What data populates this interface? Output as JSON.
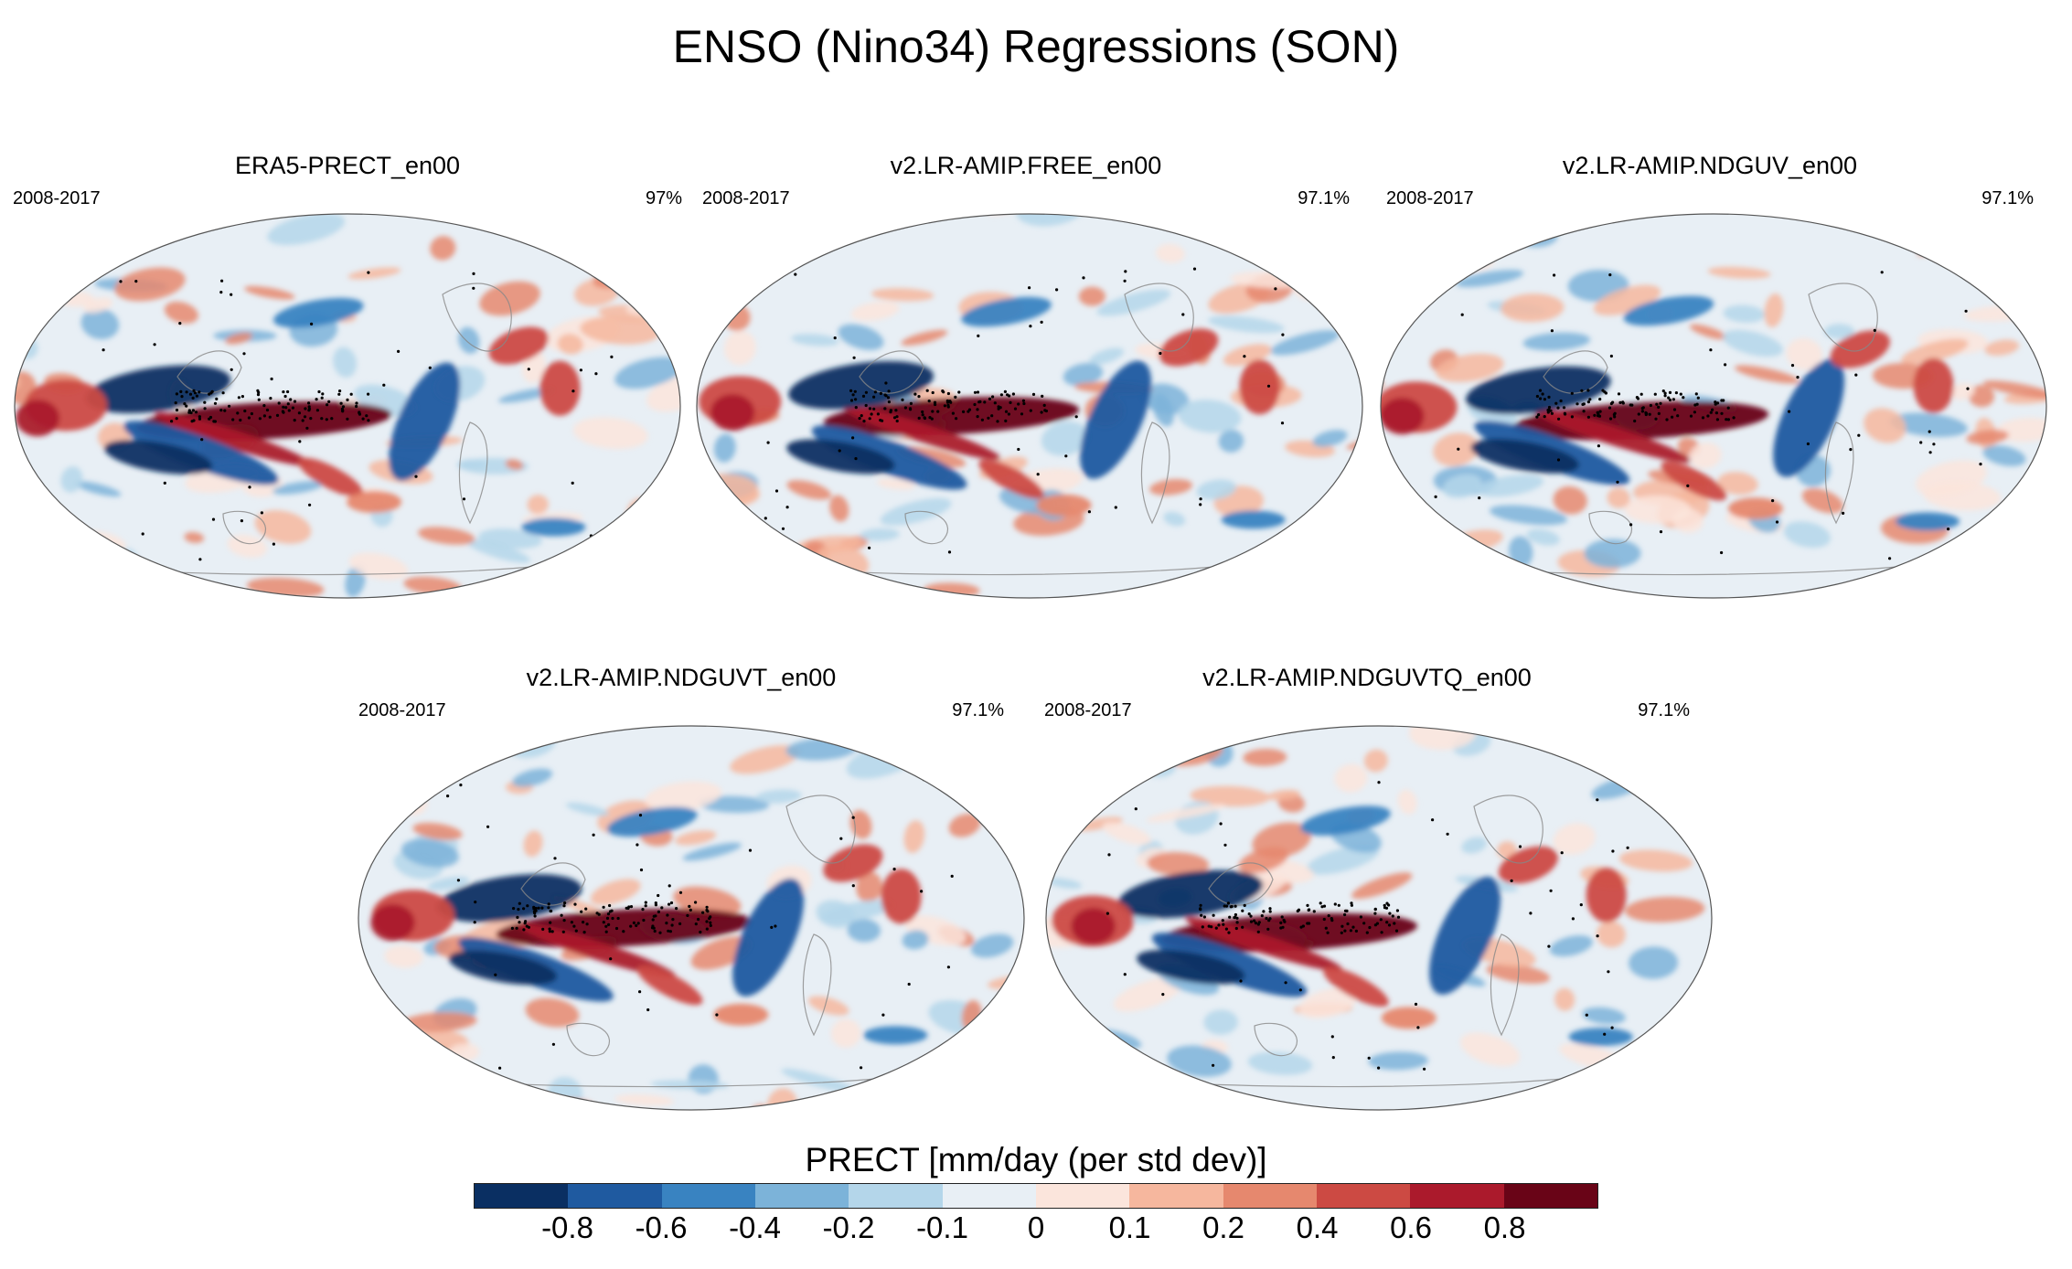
{
  "title": "ENSO (Nino34) Regressions (SON)",
  "panels": [
    {
      "title": "ERA5-PRECT_en00",
      "years": "2008-2017",
      "pct": "97%"
    },
    {
      "title": "v2.LR-AMIP.FREE_en00",
      "years": "2008-2017",
      "pct": "97.1%"
    },
    {
      "title": "v2.LR-AMIP.NDGUV_en00",
      "years": "2008-2017",
      "pct": "97.1%"
    },
    {
      "title": "v2.LR-AMIP.NDGUVT_en00",
      "years": "2008-2017",
      "pct": "97.1%"
    },
    {
      "title": "v2.LR-AMIP.NDGUVTQ_en00",
      "years": "2008-2017",
      "pct": "97.1%"
    }
  ],
  "colorbar": {
    "title": "PRECT [mm/day (per std dev)]",
    "colors": [
      "#0a2f62",
      "#1f5aa0",
      "#3983c1",
      "#7cb3d9",
      "#b4d6ea",
      "#e8eff5",
      "#fbe5dc",
      "#f6b79e",
      "#e6886e",
      "#cc4a43",
      "#ab1a2c",
      "#690417"
    ],
    "ticks": [
      "-0.8",
      "-0.6",
      "-0.4",
      "-0.2",
      "-0.1",
      "0",
      "0.1",
      "0.2",
      "0.4",
      "0.6",
      "0.8"
    ]
  }
}
